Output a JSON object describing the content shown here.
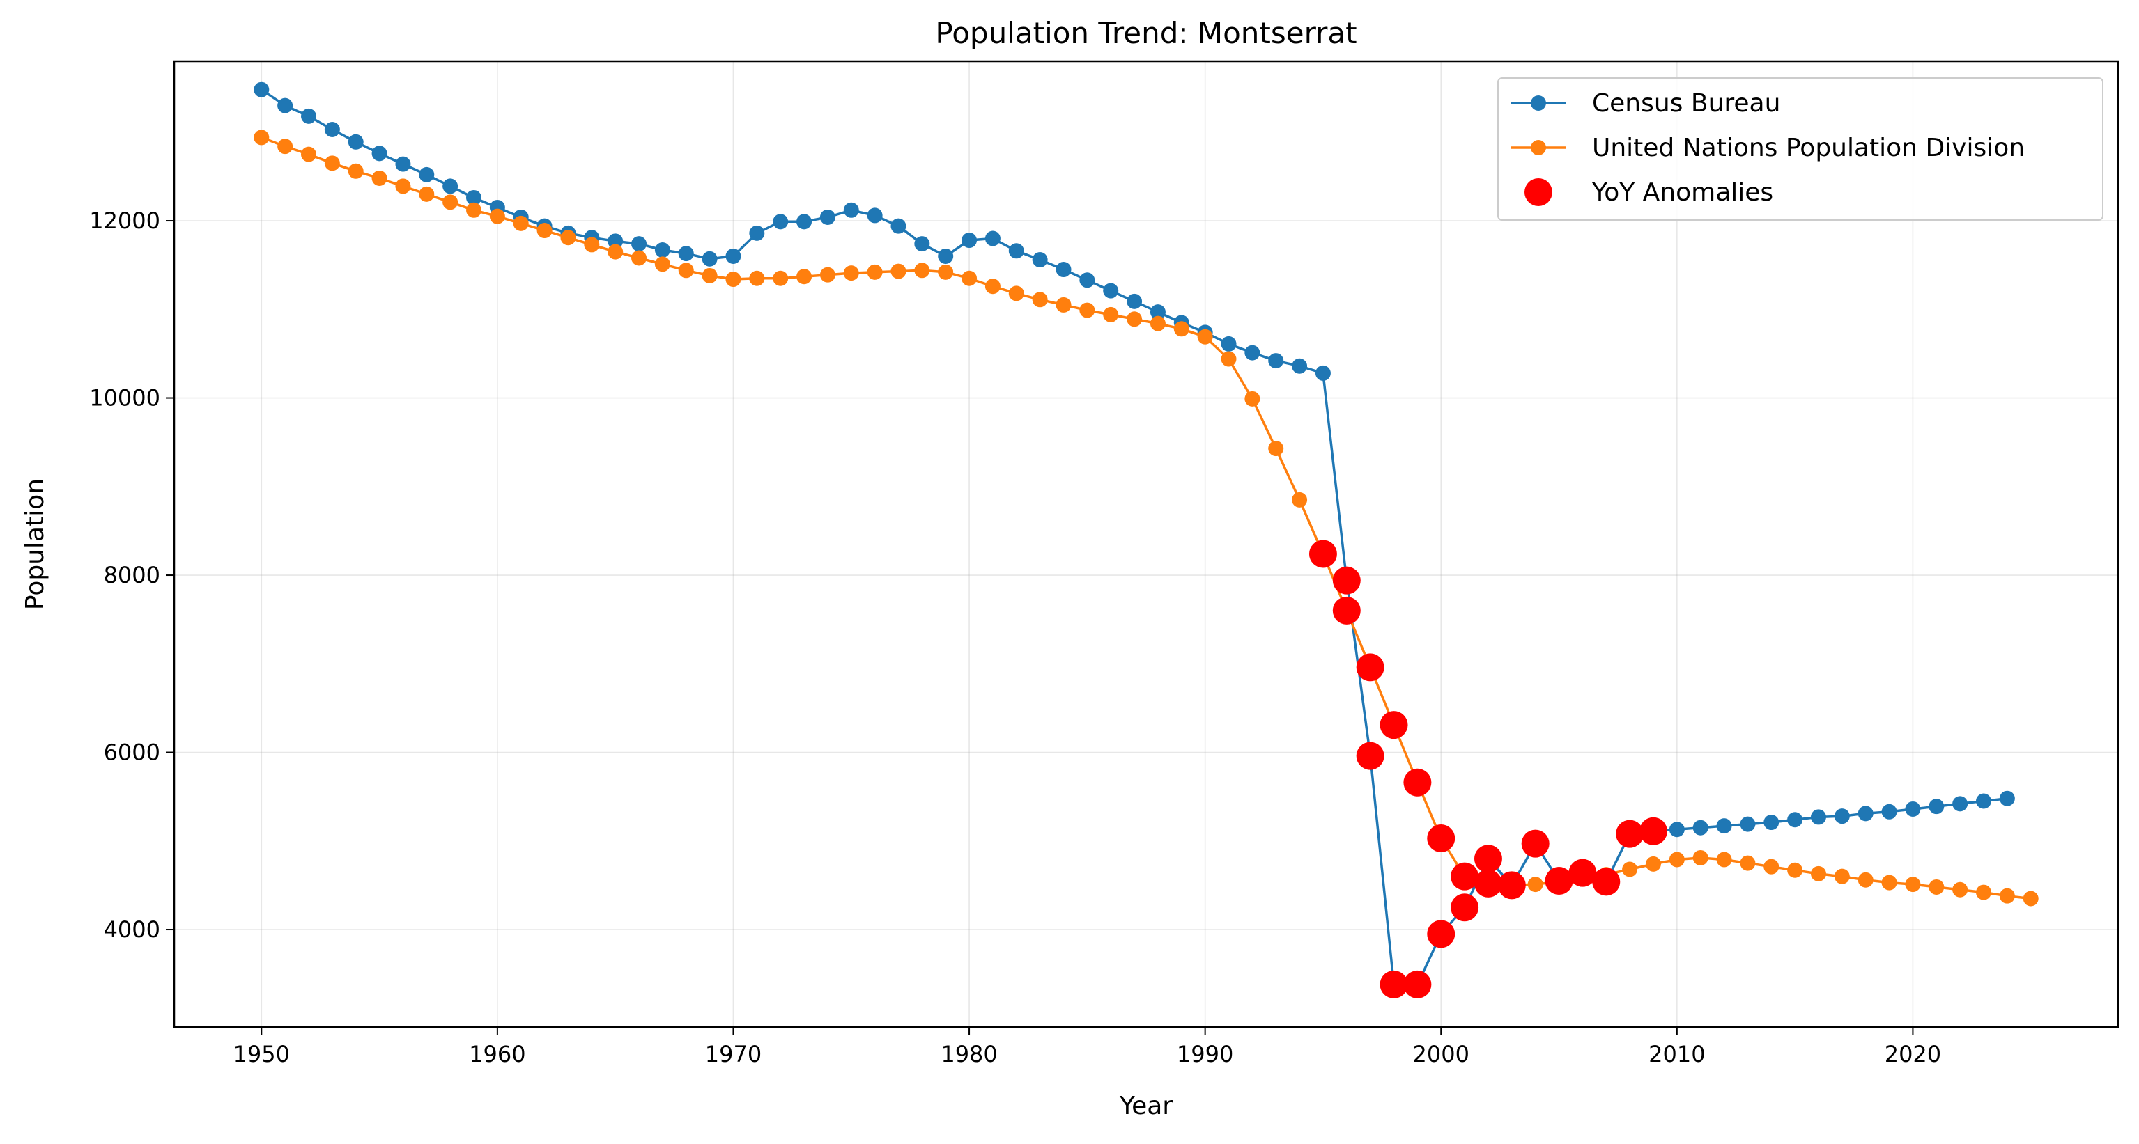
{
  "chart_data": {
    "type": "line",
    "title": "Population Trend: Montserrat",
    "xlabel": "Year",
    "ylabel": "Population",
    "xlim": [
      1946.3,
      2028.7
    ],
    "ylim": [
      2900,
      13800
    ],
    "xticks": [
      1950,
      1960,
      1970,
      1980,
      1990,
      2000,
      2010,
      2020
    ],
    "yticks": [
      4000,
      6000,
      8000,
      10000,
      12000
    ],
    "grid": true,
    "legend_position": "top-right",
    "series": [
      {
        "name": "Census Bureau",
        "color": "#1f77b4",
        "marker": "circle",
        "x": [
          1950,
          1951,
          1952,
          1953,
          1954,
          1955,
          1956,
          1957,
          1958,
          1959,
          1960,
          1961,
          1962,
          1963,
          1964,
          1965,
          1966,
          1967,
          1968,
          1969,
          1970,
          1971,
          1972,
          1973,
          1974,
          1975,
          1976,
          1977,
          1978,
          1979,
          1980,
          1981,
          1982,
          1983,
          1984,
          1985,
          1986,
          1987,
          1988,
          1989,
          1990,
          1991,
          1992,
          1993,
          1994,
          1995,
          1996,
          1997,
          1998,
          1999,
          2000,
          2001,
          2002,
          2003,
          2004,
          2005,
          2006,
          2007,
          2008,
          2009,
          2010,
          2011,
          2012,
          2013,
          2014,
          2015,
          2016,
          2017,
          2018,
          2019,
          2020,
          2021,
          2022,
          2023,
          2024
        ],
        "y": [
          13480,
          13300,
          13180,
          13030,
          12890,
          12760,
          12640,
          12520,
          12390,
          12260,
          12150,
          12040,
          11940,
          11860,
          11810,
          11770,
          11740,
          11670,
          11630,
          11570,
          11600,
          11860,
          11990,
          11990,
          12040,
          12120,
          12060,
          11940,
          11740,
          11600,
          11780,
          11800,
          11660,
          11560,
          11450,
          11330,
          11210,
          11090,
          10970,
          10850,
          10740,
          10610,
          10510,
          10420,
          10360,
          10280,
          7940,
          5960,
          3380,
          3380,
          3950,
          4250,
          4800,
          4500,
          4970,
          4550,
          4640,
          4540,
          5080,
          5110,
          5130,
          5150,
          5170,
          5190,
          5210,
          5240,
          5270,
          5280,
          5310,
          5330,
          5360,
          5390,
          5420,
          5450,
          5480
        ]
      },
      {
        "name": "United Nations Population Division",
        "color": "#ff7f0e",
        "marker": "circle",
        "x": [
          1950,
          1951,
          1952,
          1953,
          1954,
          1955,
          1956,
          1957,
          1958,
          1959,
          1960,
          1961,
          1962,
          1963,
          1964,
          1965,
          1966,
          1967,
          1968,
          1969,
          1970,
          1971,
          1972,
          1973,
          1974,
          1975,
          1976,
          1977,
          1978,
          1979,
          1980,
          1981,
          1982,
          1983,
          1984,
          1985,
          1986,
          1987,
          1988,
          1989,
          1990,
          1991,
          1992,
          1993,
          1994,
          1995,
          1996,
          1997,
          1998,
          1999,
          2000,
          2001,
          2002,
          2003,
          2004,
          2005,
          2006,
          2007,
          2008,
          2009,
          2010,
          2011,
          2012,
          2013,
          2014,
          2015,
          2016,
          2017,
          2018,
          2019,
          2020,
          2021,
          2022,
          2023,
          2024,
          2025
        ],
        "y": [
          12940,
          12840,
          12750,
          12650,
          12560,
          12480,
          12390,
          12300,
          12210,
          12120,
          12050,
          11970,
          11890,
          11810,
          11730,
          11650,
          11580,
          11510,
          11440,
          11380,
          11340,
          11350,
          11350,
          11370,
          11390,
          11410,
          11420,
          11430,
          11440,
          11420,
          11350,
          11260,
          11180,
          11110,
          11050,
          10990,
          10940,
          10890,
          10840,
          10780,
          10690,
          10440,
          9990,
          9430,
          8850,
          8240,
          7600,
          6960,
          6310,
          5660,
          5030,
          4600,
          4520,
          4500,
          4510,
          4540,
          4590,
          4620,
          4680,
          4740,
          4790,
          4810,
          4790,
          4750,
          4710,
          4670,
          4630,
          4600,
          4560,
          4530,
          4510,
          4480,
          4450,
          4420,
          4380,
          4350
        ]
      },
      {
        "name": "YoY Anomalies",
        "color": "#ff0000",
        "marker": "circle",
        "style": "markers-only",
        "x": [
          1995,
          1996,
          1996,
          1997,
          1997,
          1998,
          1998,
          1999,
          1999,
          2000,
          2000,
          2001,
          2001,
          2002,
          2002,
          2003,
          2004,
          2005,
          2006,
          2007,
          2008,
          2009
        ],
        "y": [
          8240,
          7940,
          7600,
          6960,
          5960,
          6310,
          3380,
          5660,
          3380,
          5030,
          3950,
          4600,
          4250,
          4800,
          4520,
          4500,
          4970,
          4550,
          4640,
          4540,
          5080,
          5110
        ]
      }
    ]
  }
}
